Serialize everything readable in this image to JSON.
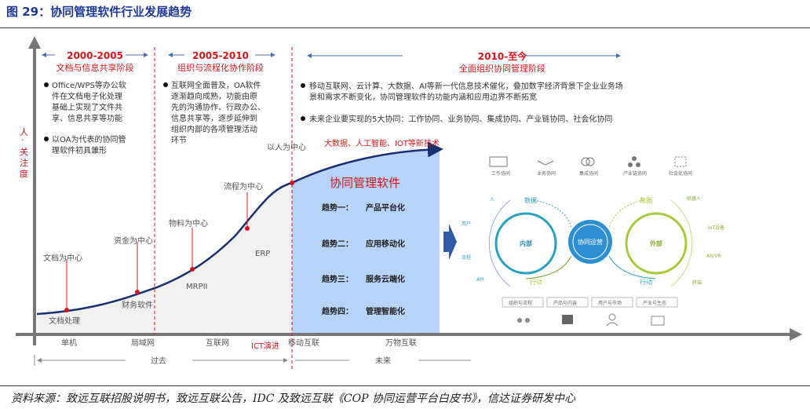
{
  "title": "图 29：协同管理软件行业发展趋势",
  "source": "资料来源：致远互联招股说明书，致远互联公告，IDC 及致远互联《COP 协同运营平台白皮书》，信达证券研发中心",
  "y_axis_label": [
    "人",
    "·",
    "关",
    "注",
    "度"
  ],
  "stages": [
    {
      "years": "2000-2005",
      "name": "文档与信息共享阶段",
      "bullets": [
        [
          "Office/WPS等办公软",
          "件在文档电子化处理",
          "基础上实现了文件共",
          "享、信息共享等功能"
        ],
        [
          "以OA为代表的协同管",
          "理软件初具雏形"
        ]
      ]
    },
    {
      "years": "2005-2010",
      "name": "组织与流程化协作阶段",
      "bullets": [
        [
          "互联网全面普及，OA软件",
          "逐渐趋向成熟，功能由原",
          "先的沟通协作、行政办公、",
          "信息共享等，逐步延伸到",
          "组织内部的各项管理活动",
          "环节"
        ]
      ]
    },
    {
      "years": "2010-至今",
      "name": "全面组织协同管理阶段",
      "bullets": [
        [
          "移动互联网、云计算、大数据、AI等新一代信息技术催化，叠加数字经济背景下企业业务场",
          "景和需求不断变化，协同管理软件的功能内涵和应用边界不断拓宽"
        ],
        [
          "未来企业要实现的5大协同：工作协同、业务协同、集成协同、产业链协同、社会化协同"
        ]
      ]
    }
  ],
  "curve_labels": {
    "l1_top": "文档为中心",
    "l1_bot": "文档处理",
    "l2_top": "资金为中心",
    "l2_bot": "财务软件",
    "l3_top": "物料为中心",
    "l3_bot": "MRPII",
    "l4_top": "流程为中心",
    "l4_bot": "ERP",
    "l5": "以人为中心",
    "tech": "大数据、人工智能、IOT等新技术",
    "ict": "ICT演进"
  },
  "software": {
    "title": "协同管理软件",
    "trends": [
      [
        "趋势一：",
        "产品平台化"
      ],
      [
        "趋势二：",
        "应用移动化"
      ],
      [
        "趋势三：",
        "服务云端化"
      ],
      [
        "趋势四：",
        "管理智能化"
      ]
    ]
  },
  "x_axis": {
    "ticks": [
      "单机",
      "局域网",
      "互联网",
      "移动互联",
      "万物互联"
    ],
    "past": "过去",
    "future": "未来"
  },
  "right_panel": {
    "collab": [
      "工作协同",
      "业务协同",
      "集成协同",
      "产业链协同",
      "社会化协同"
    ],
    "internal": "内部",
    "center": "协同运营",
    "external": "外部",
    "data": "数据",
    "action": "行动",
    "left_items": [
      "人",
      "用户",
      "流程",
      "API"
    ],
    "right_items": [
      "机器人",
      "IoT设备",
      "AR/VR",
      "终端"
    ],
    "bottom": [
      "组织与流程",
      "产品与内容",
      "用户与市场",
      "产业与生态"
    ]
  },
  "colors": {
    "title": "#1f3a93",
    "red": "#d0161b",
    "curve": "#1a2f6e",
    "blue_area": "#b7d3f7",
    "teal": "#2aa0c0",
    "green": "#a8c83c"
  }
}
